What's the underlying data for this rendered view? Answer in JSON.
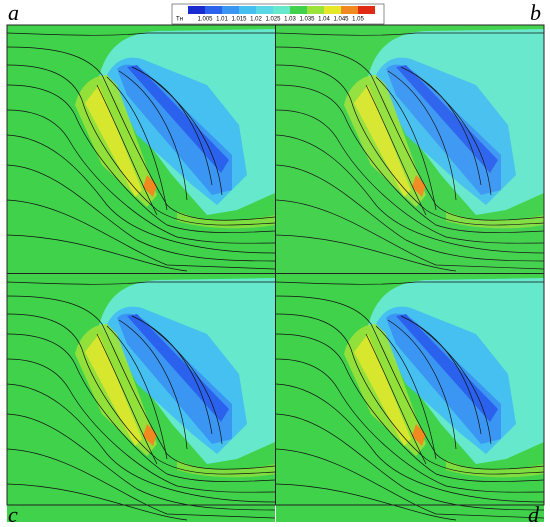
{
  "colorbar": {
    "title": "Tн",
    "levels": [
      1.005,
      1.01,
      1.015,
      1.02,
      1.025,
      1.03,
      1.035,
      1.04,
      1.045,
      1.05
    ],
    "colors": [
      "#1a2bd0",
      "#2a62ee",
      "#3a96f2",
      "#46c0f0",
      "#5ad8e6",
      "#66e8cc",
      "#3fd24a",
      "#9be23a",
      "#e8e82a",
      "#f08a1e",
      "#e02a14"
    ]
  },
  "panels": [
    {
      "label": "a"
    },
    {
      "label": "b"
    },
    {
      "label": "c"
    },
    {
      "label": "d"
    }
  ]
}
